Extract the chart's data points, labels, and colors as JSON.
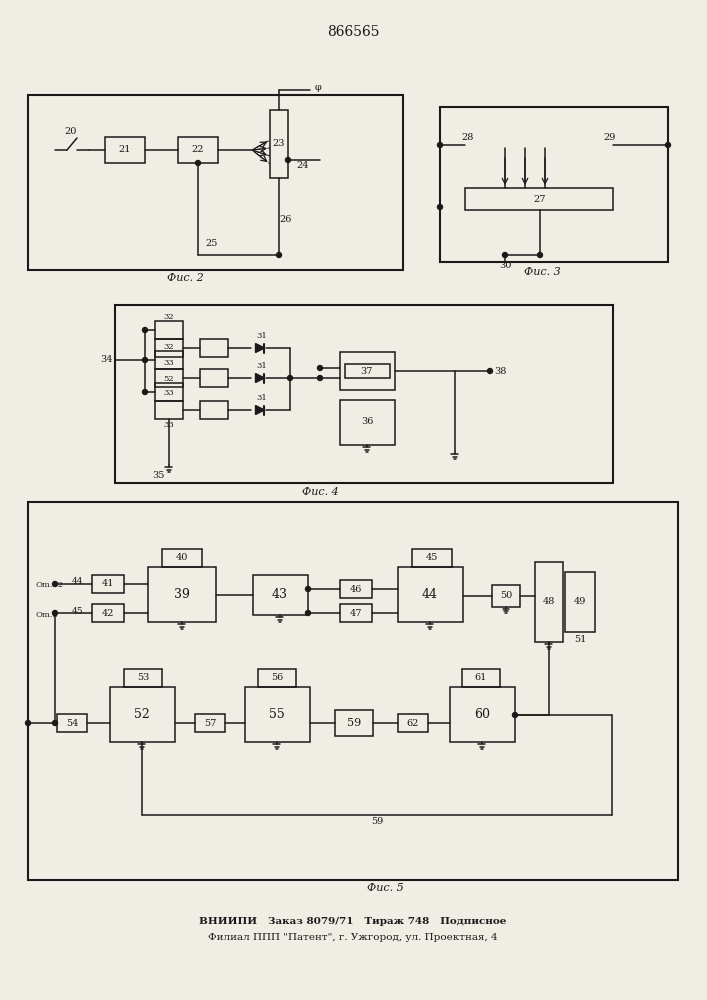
{
  "title": "866565",
  "fig2_label": "Фис. 2",
  "fig3_label": "Фис. 3",
  "fig4_label": "Фис. 4",
  "fig5_label": "Фис. 5",
  "footer1": "ВНИИПИ   Заказ 8079/71   Тираж 748   Подписное",
  "footer2": "Филиал ППП \"Патент\", г. Ужгород, ул. Проектная, 4",
  "bg_color": "#f0ede5",
  "lc": "#1a1a1a"
}
